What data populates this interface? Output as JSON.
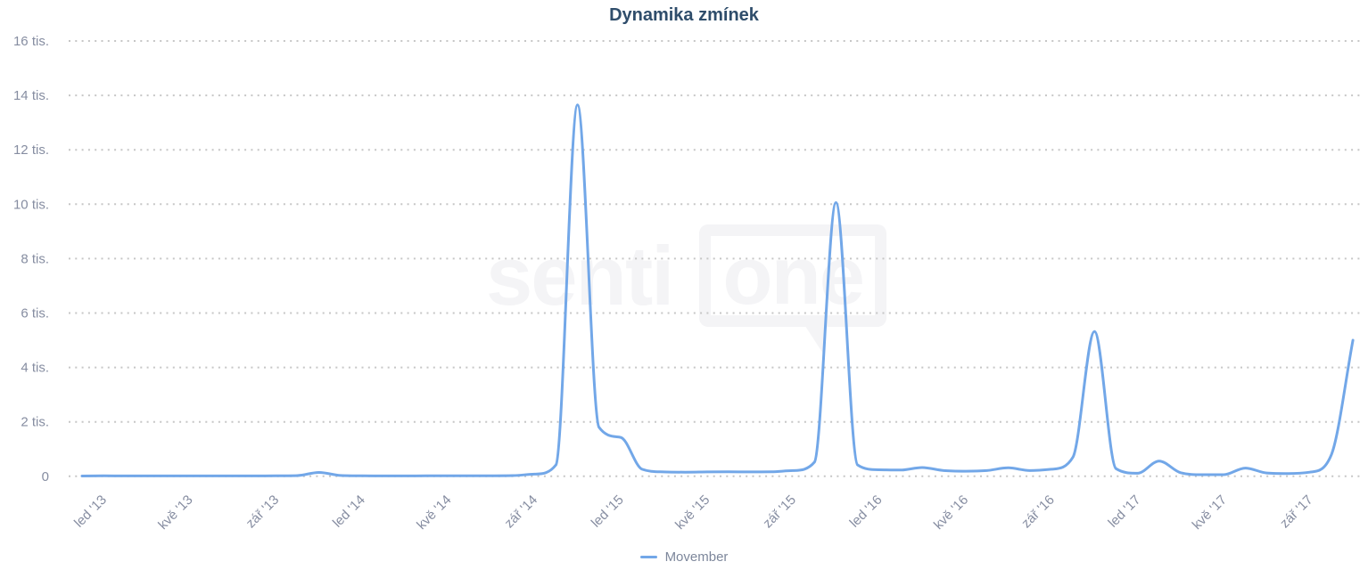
{
  "title": "Dynamika zmínek",
  "watermark": {
    "prefix": "senti",
    "boxed": "one"
  },
  "colors": {
    "line": "#72a7e8",
    "title": "#2f4d6b",
    "axis_label": "#868da1",
    "grid": "#c6c6c6",
    "watermark": "#f4f4f6",
    "legend_label": "#7d879b"
  },
  "y_axis": {
    "tick_labels": [
      "16 tis.",
      "14 tis.",
      "12 tis.",
      "10 tis.",
      "8 tis.",
      "6 tis.",
      "4 tis.",
      "2 tis.",
      "0"
    ],
    "min": 0,
    "max": 16000,
    "step": 2000
  },
  "x_axis": {
    "tick_labels": [
      "led '13",
      "kvě '13",
      "zář '13",
      "led '14",
      "kvě '14",
      "zář '14",
      "led '15",
      "kvě '15",
      "zář '15",
      "led '16",
      "kvě '16",
      "zář '16",
      "led '17",
      "kvě '17",
      "zář '17"
    ],
    "tick_data_indices": [
      1,
      5,
      9,
      13,
      17,
      21,
      25,
      29,
      33,
      37,
      41,
      45,
      49,
      53,
      57
    ]
  },
  "legend": [
    {
      "label": "Movember",
      "color": "#72a7e8"
    }
  ],
  "chart_data": {
    "type": "line",
    "title": "Dynamika zmínek",
    "xlabel": "",
    "ylabel": "",
    "ylim": [
      0,
      16000
    ],
    "grid": "dotted-horizontal",
    "legend_position": "bottom",
    "x": [
      "pro '12",
      "led '13",
      "úno '13",
      "bře '13",
      "dub '13",
      "kvě '13",
      "čvn '13",
      "čvc '13",
      "srp '13",
      "zář '13",
      "říj '13",
      "lis '13",
      "pro '13",
      "led '14",
      "úno '14",
      "bře '14",
      "dub '14",
      "kvě '14",
      "čvn '14",
      "čvc '14",
      "srp '14",
      "zář '14",
      "říj '14",
      "lis '14",
      "pro '14",
      "led '15",
      "úno '15",
      "bře '15",
      "dub '15",
      "kvě '15",
      "čvn '15",
      "čvc '15",
      "srp '15",
      "zář '15",
      "říj '15",
      "lis '15",
      "pro '15",
      "led '16",
      "úno '16",
      "bře '16",
      "dub '16",
      "kvě '16",
      "čvn '16",
      "čvc '16",
      "srp '16",
      "zář '16",
      "říj '16",
      "lis '16",
      "pro '16",
      "led '17",
      "úno '17",
      "bře '17",
      "dub '17",
      "kvě '17",
      "čvn '17",
      "čvc '17",
      "srp '17",
      "zář '17",
      "říj '17",
      "lis '17"
    ],
    "series": [
      {
        "name": "Movember",
        "color": "#72a7e8",
        "values": [
          10,
          15,
          12,
          12,
          12,
          12,
          12,
          12,
          12,
          15,
          25,
          140,
          30,
          15,
          12,
          12,
          15,
          20,
          15,
          20,
          25,
          80,
          420,
          13650,
          1800,
          1430,
          260,
          160,
          150,
          160,
          165,
          160,
          165,
          210,
          520,
          10060,
          420,
          240,
          230,
          320,
          210,
          185,
          210,
          310,
          210,
          260,
          700,
          5320,
          280,
          110,
          560,
          130,
          60,
          60,
          300,
          120,
          100,
          150,
          800,
          5000
        ]
      }
    ]
  }
}
